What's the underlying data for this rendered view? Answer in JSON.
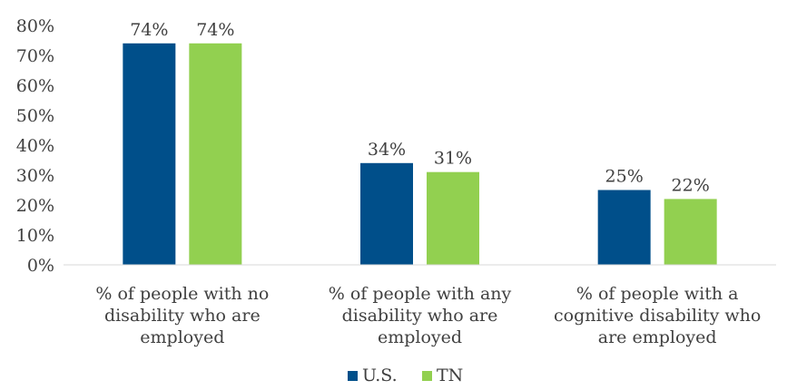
{
  "chart_data": {
    "type": "bar",
    "title": "",
    "xlabel": "",
    "ylabel": "",
    "categories": [
      [
        "% of people with no",
        "disability who are",
        "employed"
      ],
      [
        "% of people with any",
        "disability who are",
        "employed"
      ],
      [
        "% of people with a",
        "cognitive disability who",
        "are employed"
      ]
    ],
    "series": [
      {
        "name": "U.S.",
        "color": "#004F8A",
        "values": [
          74,
          34,
          25
        ],
        "labels": [
          "74%",
          "34%",
          "25%"
        ]
      },
      {
        "name": "TN",
        "color": "#92D050",
        "values": [
          74,
          31,
          22
        ],
        "labels": [
          "74%",
          "31%",
          "22%"
        ]
      }
    ],
    "ylim": [
      0,
      80
    ],
    "yticks": [
      "0%",
      "10%",
      "20%",
      "30%",
      "40%",
      "50%",
      "60%",
      "70%",
      "80%"
    ],
    "grid": false,
    "legend_position": "bottom-center"
  }
}
